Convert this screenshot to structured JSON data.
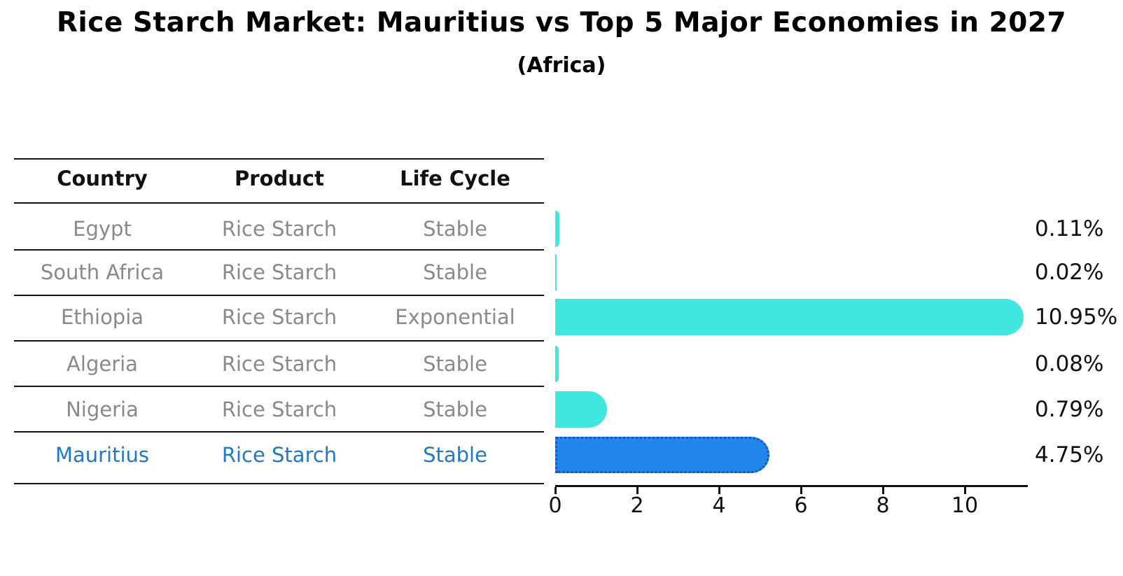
{
  "title": "Rice Starch Market: Mauritius vs Top 5 Major Economies in 2027",
  "subtitle": "(Africa)",
  "table": {
    "headers": [
      "Country",
      "Product",
      "Life Cycle"
    ],
    "rows": [
      [
        "Egypt",
        "Rice Starch",
        "Stable"
      ],
      [
        "South Africa",
        "Rice Starch",
        "Stable"
      ],
      [
        "Ethiopia",
        "Rice Starch",
        "Exponential"
      ],
      [
        "Algeria",
        "Rice Starch",
        "Stable"
      ],
      [
        "Nigeria",
        "Rice Starch",
        "Stable"
      ],
      [
        "Mauritius",
        "Rice Starch",
        "Stable"
      ]
    ],
    "highlight_row": "Mauritius"
  },
  "chart_data": {
    "type": "bar",
    "orientation": "horizontal",
    "title": "Rice Starch Market: Mauritius vs Top 5 Major Economies in 2027",
    "subtitle": "(Africa)",
    "categories": [
      "Egypt",
      "South Africa",
      "Ethiopia",
      "Algeria",
      "Nigeria",
      "Mauritius"
    ],
    "values": [
      0.11,
      0.02,
      10.95,
      0.08,
      0.79,
      4.75
    ],
    "value_labels": [
      "0.11%",
      "0.02%",
      "10.95%",
      "0.08%",
      "0.79%",
      "4.75%"
    ],
    "x_ticks": [
      "0",
      "2",
      "4",
      "6",
      "8",
      "10"
    ],
    "x_tick_values": [
      0,
      2,
      4,
      6,
      8,
      10
    ],
    "xlim": [
      0,
      11.5
    ],
    "grid": false,
    "legend": "none",
    "highlight_category": "Mauritius"
  },
  "colors": {
    "background": "#ffffff",
    "bar_color": "#42e6e0",
    "highlight_bar_fill": "#2185ea",
    "highlight_bar_border": "#0a58cc",
    "row_text": "#8a8a8a",
    "highlight_text": "#2478c8",
    "header_text": "#111111",
    "axis": "#111111",
    "label_text": "#111111"
  }
}
